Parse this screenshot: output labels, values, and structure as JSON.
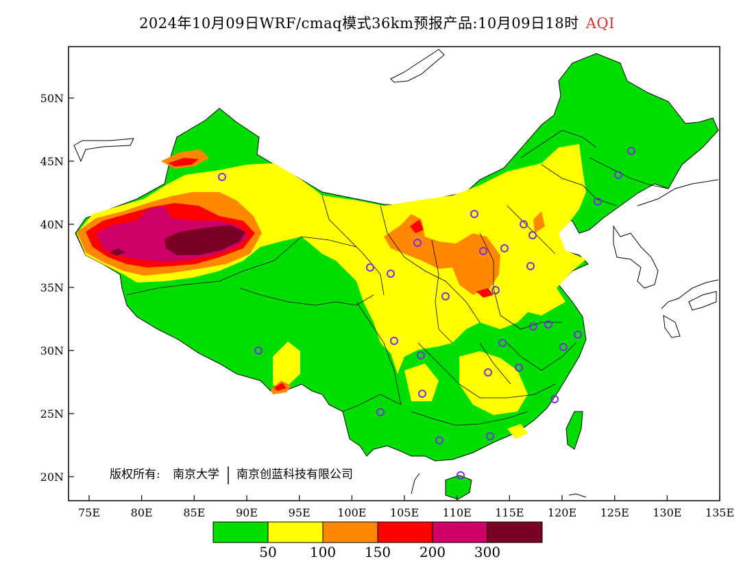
{
  "title": {
    "main": "2024年10月09日WRF/cmaq模式36km预报产品:10月09日18时",
    "variable": "AQI"
  },
  "map": {
    "lat_ticks": [
      "50N",
      "45N",
      "40N",
      "35N",
      "30N",
      "25N",
      "20N"
    ],
    "lon_ticks": [
      "75E",
      "80E",
      "85E",
      "90E",
      "95E",
      "100E",
      "105E",
      "110E",
      "115E",
      "120E",
      "125E",
      "130E",
      "135E"
    ],
    "copyright_prefix": "版权所有:",
    "copyright_org1": "南京大学",
    "copyright_org2": "南京创蓝科技有限公司",
    "station_marker_color": "#7a2ee0"
  },
  "legend": {
    "colors": [
      "#00dd00",
      "#ffff00",
      "#ff8800",
      "#ff0000",
      "#cc0066",
      "#7a0026"
    ],
    "labels": [
      "50",
      "100",
      "150",
      "200",
      "300"
    ],
    "categories": [
      "0-50",
      "50-100",
      "100-150",
      "150-200",
      "200-300",
      ">300"
    ]
  }
}
